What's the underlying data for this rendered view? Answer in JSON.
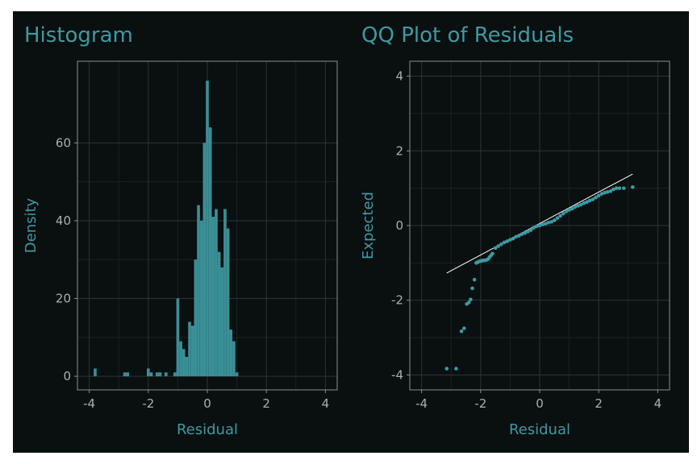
{
  "colors": {
    "background": "#0a0f10",
    "accent": "#3d9aa3",
    "bars": "#3a8f96",
    "points": "#3a9aa3",
    "reference_line": "#ffffff",
    "grid": "#2e3436"
  },
  "chart_data": [
    {
      "type": "bar",
      "title": "Histogram",
      "xlabel": "Residual",
      "ylabel": "Density",
      "xlim": [
        -4.4,
        4.4
      ],
      "ylim": [
        -3.5,
        81
      ],
      "xticks": [
        -4,
        -2,
        0,
        2,
        4
      ],
      "yticks": [
        0,
        20,
        40,
        60
      ],
      "grid": true,
      "bin_width": 0.1,
      "bins": [
        {
          "x": -3.8,
          "y": 2
        },
        {
          "x": -2.8,
          "y": 1
        },
        {
          "x": -2.7,
          "y": 1
        },
        {
          "x": -2.0,
          "y": 2
        },
        {
          "x": -1.9,
          "y": 1
        },
        {
          "x": -1.7,
          "y": 1
        },
        {
          "x": -1.6,
          "y": 1
        },
        {
          "x": -1.4,
          "y": 1
        },
        {
          "x": -1.1,
          "y": 1
        },
        {
          "x": -1.0,
          "y": 20
        },
        {
          "x": -0.9,
          "y": 9
        },
        {
          "x": -0.8,
          "y": 7
        },
        {
          "x": -0.7,
          "y": 5
        },
        {
          "x": -0.6,
          "y": 14
        },
        {
          "x": -0.5,
          "y": 13
        },
        {
          "x": -0.4,
          "y": 30
        },
        {
          "x": -0.3,
          "y": 44
        },
        {
          "x": -0.2,
          "y": 40
        },
        {
          "x": -0.1,
          "y": 60
        },
        {
          "x": 0.0,
          "y": 76
        },
        {
          "x": 0.1,
          "y": 64
        },
        {
          "x": 0.2,
          "y": 41
        },
        {
          "x": 0.3,
          "y": 43
        },
        {
          "x": 0.4,
          "y": 32
        },
        {
          "x": 0.5,
          "y": 28
        },
        {
          "x": 0.6,
          "y": 43
        },
        {
          "x": 0.7,
          "y": 38
        },
        {
          "x": 0.8,
          "y": 12
        },
        {
          "x": 0.9,
          "y": 9
        },
        {
          "x": 1.0,
          "y": 1
        }
      ]
    },
    {
      "type": "scatter",
      "title": "QQ Plot of Residuals",
      "xlabel": "Residual",
      "ylabel": "Expected",
      "xlim": [
        -4.4,
        4.4
      ],
      "ylim": [
        -4.4,
        4.4
      ],
      "xticks": [
        -4,
        -2,
        0,
        2,
        4
      ],
      "yticks": [
        -4,
        -2,
        0,
        2,
        4
      ],
      "grid": true,
      "reference_line": {
        "x": [
          -3.15,
          3.15
        ],
        "y": [
          -1.27,
          1.38
        ]
      },
      "points": [
        [
          -3.15,
          -3.83
        ],
        [
          -2.83,
          -3.83
        ],
        [
          -2.65,
          -2.83
        ],
        [
          -2.56,
          -2.75
        ],
        [
          -2.47,
          -2.1
        ],
        [
          -2.4,
          -2.06
        ],
        [
          -2.34,
          -1.98
        ],
        [
          -2.28,
          -1.68
        ],
        [
          -2.21,
          -1.45
        ],
        [
          -2.15,
          -1.0
        ],
        [
          -2.1,
          -0.98
        ],
        [
          -2.05,
          -0.96
        ],
        [
          -2.0,
          -0.95
        ],
        [
          -1.95,
          -0.94
        ],
        [
          -1.9,
          -0.93
        ],
        [
          -1.85,
          -0.93
        ],
        [
          -1.8,
          -0.92
        ],
        [
          -1.75,
          -0.9
        ],
        [
          -1.7,
          -0.85
        ],
        [
          -1.65,
          -0.8
        ],
        [
          -1.6,
          -0.75
        ],
        [
          -1.5,
          -0.6
        ],
        [
          -1.4,
          -0.55
        ],
        [
          -1.3,
          -0.5
        ],
        [
          -1.2,
          -0.45
        ],
        [
          -1.1,
          -0.42
        ],
        [
          -1.0,
          -0.38
        ],
        [
          -0.9,
          -0.35
        ],
        [
          -0.8,
          -0.3
        ],
        [
          -0.7,
          -0.27
        ],
        [
          -0.6,
          -0.23
        ],
        [
          -0.5,
          -0.2
        ],
        [
          -0.4,
          -0.16
        ],
        [
          -0.3,
          -0.12
        ],
        [
          -0.2,
          -0.06
        ],
        [
          -0.1,
          -0.02
        ],
        [
          0.0,
          0.0
        ],
        [
          0.1,
          0.03
        ],
        [
          0.2,
          0.05
        ],
        [
          0.3,
          0.08
        ],
        [
          0.4,
          0.1
        ],
        [
          0.5,
          0.14
        ],
        [
          0.6,
          0.2
        ],
        [
          0.7,
          0.26
        ],
        [
          0.8,
          0.32
        ],
        [
          0.9,
          0.38
        ],
        [
          1.0,
          0.42
        ],
        [
          1.1,
          0.45
        ],
        [
          1.2,
          0.5
        ],
        [
          1.3,
          0.53
        ],
        [
          1.4,
          0.56
        ],
        [
          1.5,
          0.6
        ],
        [
          1.6,
          0.63
        ],
        [
          1.7,
          0.67
        ],
        [
          1.8,
          0.7
        ],
        [
          1.9,
          0.75
        ],
        [
          2.0,
          0.8
        ],
        [
          2.1,
          0.85
        ],
        [
          2.2,
          0.88
        ],
        [
          2.3,
          0.9
        ],
        [
          2.4,
          0.92
        ],
        [
          2.5,
          0.97
        ],
        [
          2.6,
          1.0
        ],
        [
          2.7,
          1.0
        ],
        [
          2.85,
          1.0
        ],
        [
          3.15,
          1.03
        ]
      ]
    }
  ]
}
